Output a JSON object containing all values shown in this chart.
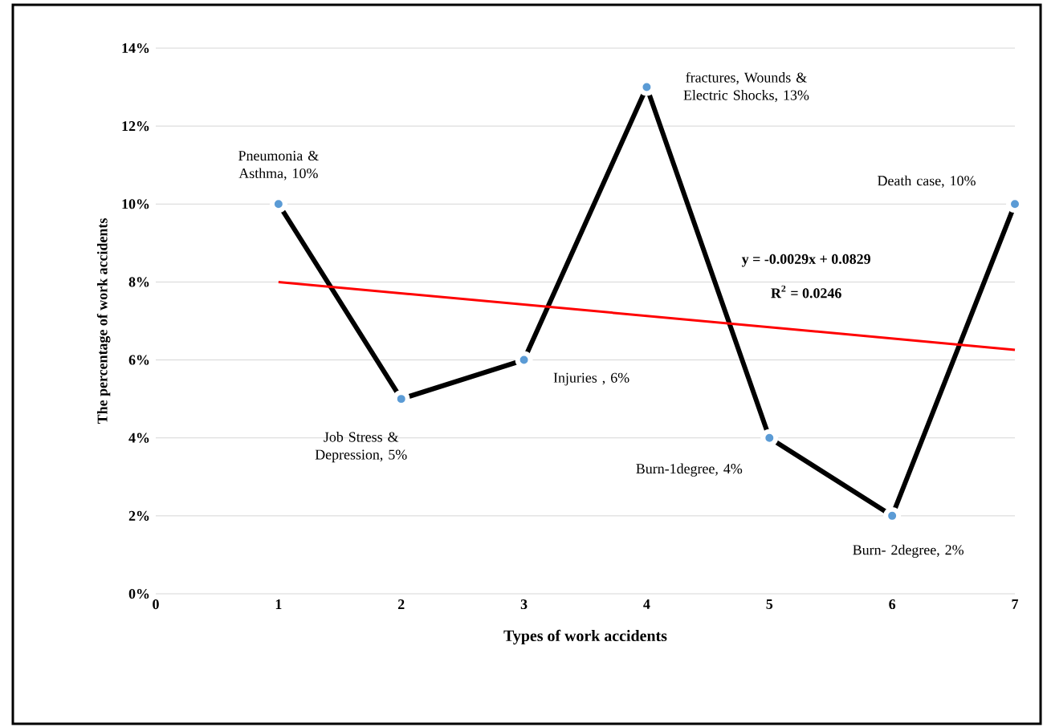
{
  "chart_data": {
    "type": "line",
    "xlabel": "Types of work accidents",
    "ylabel": "The percentage of work accidents",
    "x": [
      1,
      2,
      3,
      4,
      5,
      6,
      7
    ],
    "xlim": [
      0,
      7
    ],
    "xticks": [
      0,
      1,
      2,
      3,
      4,
      5,
      6,
      7
    ],
    "ylim": [
      0,
      14
    ],
    "yticks": [
      {
        "value": 0,
        "label": "0%"
      },
      {
        "value": 2,
        "label": "2%"
      },
      {
        "value": 4,
        "label": "4%"
      },
      {
        "value": 6,
        "label": "6%"
      },
      {
        "value": 8,
        "label": "8%"
      },
      {
        "value": 10,
        "label": "10%"
      },
      {
        "value": 12,
        "label": "12%"
      },
      {
        "value": 14,
        "label": "14%"
      }
    ],
    "grid": "y",
    "marker": "circle",
    "line_style": "solid",
    "series": [
      {
        "color": "#000000",
        "values": [
          10,
          5,
          6,
          13,
          4,
          2,
          10
        ]
      },
      {
        "type": "line",
        "color": "#ff0000",
        "marker": "none",
        "x": [
          1,
          7
        ],
        "values": [
          8.0,
          6.26
        ]
      }
    ],
    "annotations": [
      {
        "text": "Pneumonia & Asthma, 10%",
        "x": 1,
        "y": 10
      },
      {
        "text": "Job Stress & Depression, 5%",
        "x": 2,
        "y": 5
      },
      {
        "text": "Injuries , 6%",
        "x": 3,
        "y": 6
      },
      {
        "text": "fractures, Wounds & Electric Shocks, 13%",
        "x": 4,
        "y": 13
      },
      {
        "text": "Burn-1degree, 4%",
        "x": 5,
        "y": 4
      },
      {
        "text": "Burn- 2degree, 2%",
        "x": 6,
        "y": 2
      },
      {
        "text": "Death case, 10%",
        "x": 7,
        "y": 10
      },
      "y = -0.0029x + 0.0829",
      "R$^{2}$ = 0.0246"
    ]
  }
}
